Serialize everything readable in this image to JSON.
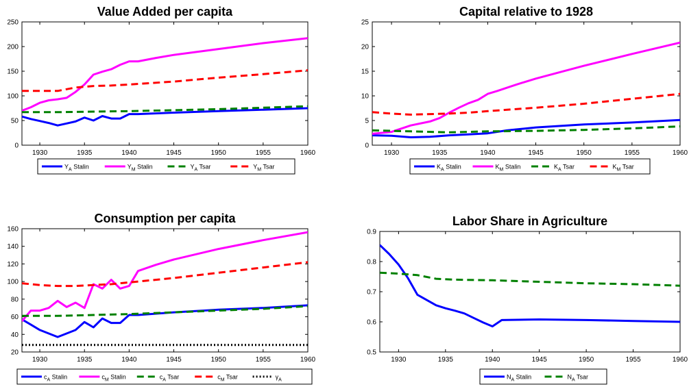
{
  "chart_data": [
    {
      "type": "line",
      "title": "Value Added per capita",
      "xlim": [
        1928,
        1960
      ],
      "ylim": [
        0,
        250
      ],
      "xticks": [
        1930,
        1935,
        1940,
        1945,
        1950,
        1955,
        1960
      ],
      "yticks": [
        0,
        50,
        100,
        150,
        200,
        250
      ],
      "series": [
        {
          "name": "Y_A Stalin",
          "label_main": "Y",
          "label_sub": "A",
          "label_tail": " Stalin",
          "color": "#0000ff",
          "dash": "solid",
          "x": [
            1928,
            1929,
            1930,
            1931,
            1932,
            1933,
            1934,
            1935,
            1936,
            1937,
            1938,
            1939,
            1940,
            1941,
            1945,
            1950,
            1955,
            1960
          ],
          "y": [
            58,
            53,
            49,
            45,
            40,
            44,
            48,
            56,
            50,
            59,
            54,
            54,
            63,
            63,
            66,
            69,
            72,
            75
          ]
        },
        {
          "name": "Y_M Stalin",
          "label_main": "Y",
          "label_sub": "M",
          "label_tail": " Stalin",
          "color": "#ff00ff",
          "dash": "solid",
          "x": [
            1928,
            1929,
            1930,
            1931,
            1932,
            1933,
            1934,
            1935,
            1936,
            1937,
            1938,
            1939,
            1940,
            1941,
            1943,
            1945,
            1950,
            1955,
            1960
          ],
          "y": [
            70,
            77,
            86,
            91,
            93,
            96,
            108,
            123,
            143,
            149,
            154,
            163,
            170,
            170,
            177,
            183,
            195,
            207,
            217
          ]
        },
        {
          "name": "Y_A Tsar",
          "label_main": "Y",
          "label_sub": "A",
          "label_tail": " Tsar",
          "color": "#008000",
          "dash": "dashed",
          "x": [
            1928,
            1932,
            1936,
            1940,
            1945,
            1950,
            1955,
            1960
          ],
          "y": [
            67,
            67,
            68,
            69,
            71,
            73,
            76,
            79
          ]
        },
        {
          "name": "Y_M Tsar",
          "label_main": "Y",
          "label_sub": "M",
          "label_tail": " Tsar",
          "color": "#ff0000",
          "dash": "dashed",
          "x": [
            1928,
            1930,
            1932,
            1934,
            1936,
            1938,
            1940,
            1945,
            1950,
            1955,
            1960
          ],
          "y": [
            110,
            110,
            110,
            117,
            120,
            121,
            123,
            129,
            137,
            144,
            152
          ]
        }
      ]
    },
    {
      "type": "line",
      "title": "Capital relative to 1928",
      "xlim": [
        1928,
        1960
      ],
      "ylim": [
        0,
        25
      ],
      "xticks": [
        1930,
        1935,
        1940,
        1945,
        1950,
        1955,
        1960
      ],
      "yticks": [
        0,
        5,
        10,
        15,
        20,
        25
      ],
      "series": [
        {
          "name": "K_A Stalin",
          "label_main": "K",
          "label_sub": "A",
          "label_tail": " Stalin",
          "color": "#0000ff",
          "dash": "solid",
          "x": [
            1928,
            1930,
            1932,
            1934,
            1936,
            1938,
            1940,
            1942,
            1945,
            1950,
            1955,
            1960
          ],
          "y": [
            2.0,
            1.9,
            1.6,
            1.7,
            2.0,
            2.2,
            2.4,
            3.0,
            3.6,
            4.2,
            4.6,
            5.1
          ]
        },
        {
          "name": "K_M Stalin",
          "label_main": "K",
          "label_sub": "M",
          "label_tail": " Stalin",
          "color": "#ff00ff",
          "dash": "solid",
          "x": [
            1928,
            1930,
            1932,
            1934,
            1935,
            1936,
            1937,
            1938,
            1939,
            1940,
            1941,
            1943,
            1945,
            1950,
            1955,
            1960
          ],
          "y": [
            2.3,
            2.7,
            4.0,
            4.8,
            5.5,
            6.6,
            7.6,
            8.5,
            9.2,
            10.4,
            11.0,
            12.3,
            13.5,
            16.1,
            18.5,
            20.8
          ]
        },
        {
          "name": "K_A Tsar",
          "label_main": "K",
          "label_sub": "A",
          "label_tail": " Tsar",
          "color": "#008000",
          "dash": "dashed",
          "x": [
            1928,
            1932,
            1936,
            1940,
            1945,
            1950,
            1955,
            1960
          ],
          "y": [
            3.0,
            2.8,
            2.6,
            2.8,
            2.9,
            3.1,
            3.4,
            3.8
          ]
        },
        {
          "name": "K_M Tsar",
          "label_main": "K",
          "label_sub": "M",
          "label_tail": " Tsar",
          "color": "#ff0000",
          "dash": "dashed",
          "x": [
            1928,
            1930,
            1932,
            1934,
            1936,
            1938,
            1940,
            1945,
            1950,
            1955,
            1960
          ],
          "y": [
            6.7,
            6.4,
            6.2,
            6.3,
            6.4,
            6.6,
            6.9,
            7.6,
            8.4,
            9.4,
            10.4
          ]
        }
      ]
    },
    {
      "type": "line",
      "title": "Consumption per capita",
      "xlim": [
        1928,
        1960
      ],
      "ylim": [
        20,
        160
      ],
      "xticks": [
        1930,
        1935,
        1940,
        1945,
        1950,
        1955,
        1960
      ],
      "yticks": [
        20,
        40,
        60,
        80,
        100,
        120,
        140,
        160
      ],
      "series": [
        {
          "name": "c_A Stalin",
          "label_main": "c",
          "label_sub": "A",
          "label_tail": " Stalin",
          "color": "#0000ff",
          "dash": "solid",
          "x": [
            1928,
            1929,
            1930,
            1931,
            1932,
            1933,
            1934,
            1935,
            1936,
            1937,
            1938,
            1939,
            1940,
            1941,
            1945,
            1950,
            1955,
            1960
          ],
          "y": [
            57,
            51,
            45,
            41,
            37,
            41,
            45,
            54,
            48,
            58,
            53,
            53,
            62,
            62,
            65,
            68,
            70,
            73
          ]
        },
        {
          "name": "c_M Stalin",
          "label_main": "c",
          "label_sub": "M",
          "label_tail": " Stalin",
          "color": "#ff00ff",
          "dash": "solid",
          "x": [
            1928,
            1929,
            1930,
            1931,
            1932,
            1933,
            1934,
            1935,
            1936,
            1937,
            1938,
            1939,
            1940,
            1941,
            1943,
            1945,
            1950,
            1955,
            1960
          ],
          "y": [
            55,
            67,
            67,
            70,
            78,
            71,
            76,
            70,
            97,
            92,
            102,
            92,
            95,
            112,
            119,
            125,
            137,
            147,
            156
          ]
        },
        {
          "name": "c_A Tsar",
          "label_main": "c",
          "label_sub": "A",
          "label_tail": " Tsar",
          "color": "#008000",
          "dash": "dashed",
          "x": [
            1928,
            1932,
            1936,
            1940,
            1945,
            1950,
            1955,
            1960
          ],
          "y": [
            61,
            61,
            62,
            63,
            65,
            67,
            69,
            72
          ]
        },
        {
          "name": "c_M Tsar",
          "label_main": "c",
          "label_sub": "M",
          "label_tail": " Tsar",
          "color": "#ff0000",
          "dash": "dashed",
          "x": [
            1928,
            1930,
            1932,
            1934,
            1936,
            1938,
            1940,
            1945,
            1950,
            1955,
            1960
          ],
          "y": [
            98,
            96,
            95,
            95,
            96,
            97,
            99,
            104,
            110,
            116,
            122
          ]
        },
        {
          "name": "γ_A",
          "label_main": "γ",
          "label_sub": "A",
          "label_tail": "",
          "color": "#000000",
          "dash": "dotted",
          "x": [
            1928,
            1960
          ],
          "y": [
            28,
            28
          ]
        }
      ]
    },
    {
      "type": "line",
      "title": "Labor Share in Agriculture",
      "xlim": [
        1928,
        1960
      ],
      "ylim": [
        0.5,
        0.9
      ],
      "xticks": [
        1930,
        1935,
        1940,
        1945,
        1950,
        1955,
        1960
      ],
      "yticks": [
        0.5,
        0.6,
        0.7,
        0.8,
        0.9
      ],
      "series": [
        {
          "name": "N_A Stalin",
          "label_main": "N",
          "label_sub": "A",
          "label_tail": " Stalin",
          "color": "#0000ff",
          "dash": "solid",
          "x": [
            1928,
            1929,
            1930,
            1931,
            1932,
            1934,
            1935,
            1936,
            1937,
            1938,
            1939,
            1940,
            1941,
            1945,
            1950,
            1955,
            1960
          ],
          "y": [
            0.855,
            0.825,
            0.79,
            0.745,
            0.69,
            0.655,
            0.645,
            0.637,
            0.628,
            0.613,
            0.598,
            0.585,
            0.606,
            0.608,
            0.606,
            0.603,
            0.6
          ]
        },
        {
          "name": "N_A Tsar",
          "label_main": "N",
          "label_sub": "A",
          "label_tail": " Tsar",
          "color": "#008000",
          "dash": "dashed",
          "x": [
            1928,
            1930,
            1932,
            1934,
            1936,
            1940,
            1945,
            1950,
            1955,
            1960
          ],
          "y": [
            0.763,
            0.76,
            0.755,
            0.743,
            0.74,
            0.738,
            0.733,
            0.728,
            0.725,
            0.72
          ]
        }
      ]
    }
  ]
}
